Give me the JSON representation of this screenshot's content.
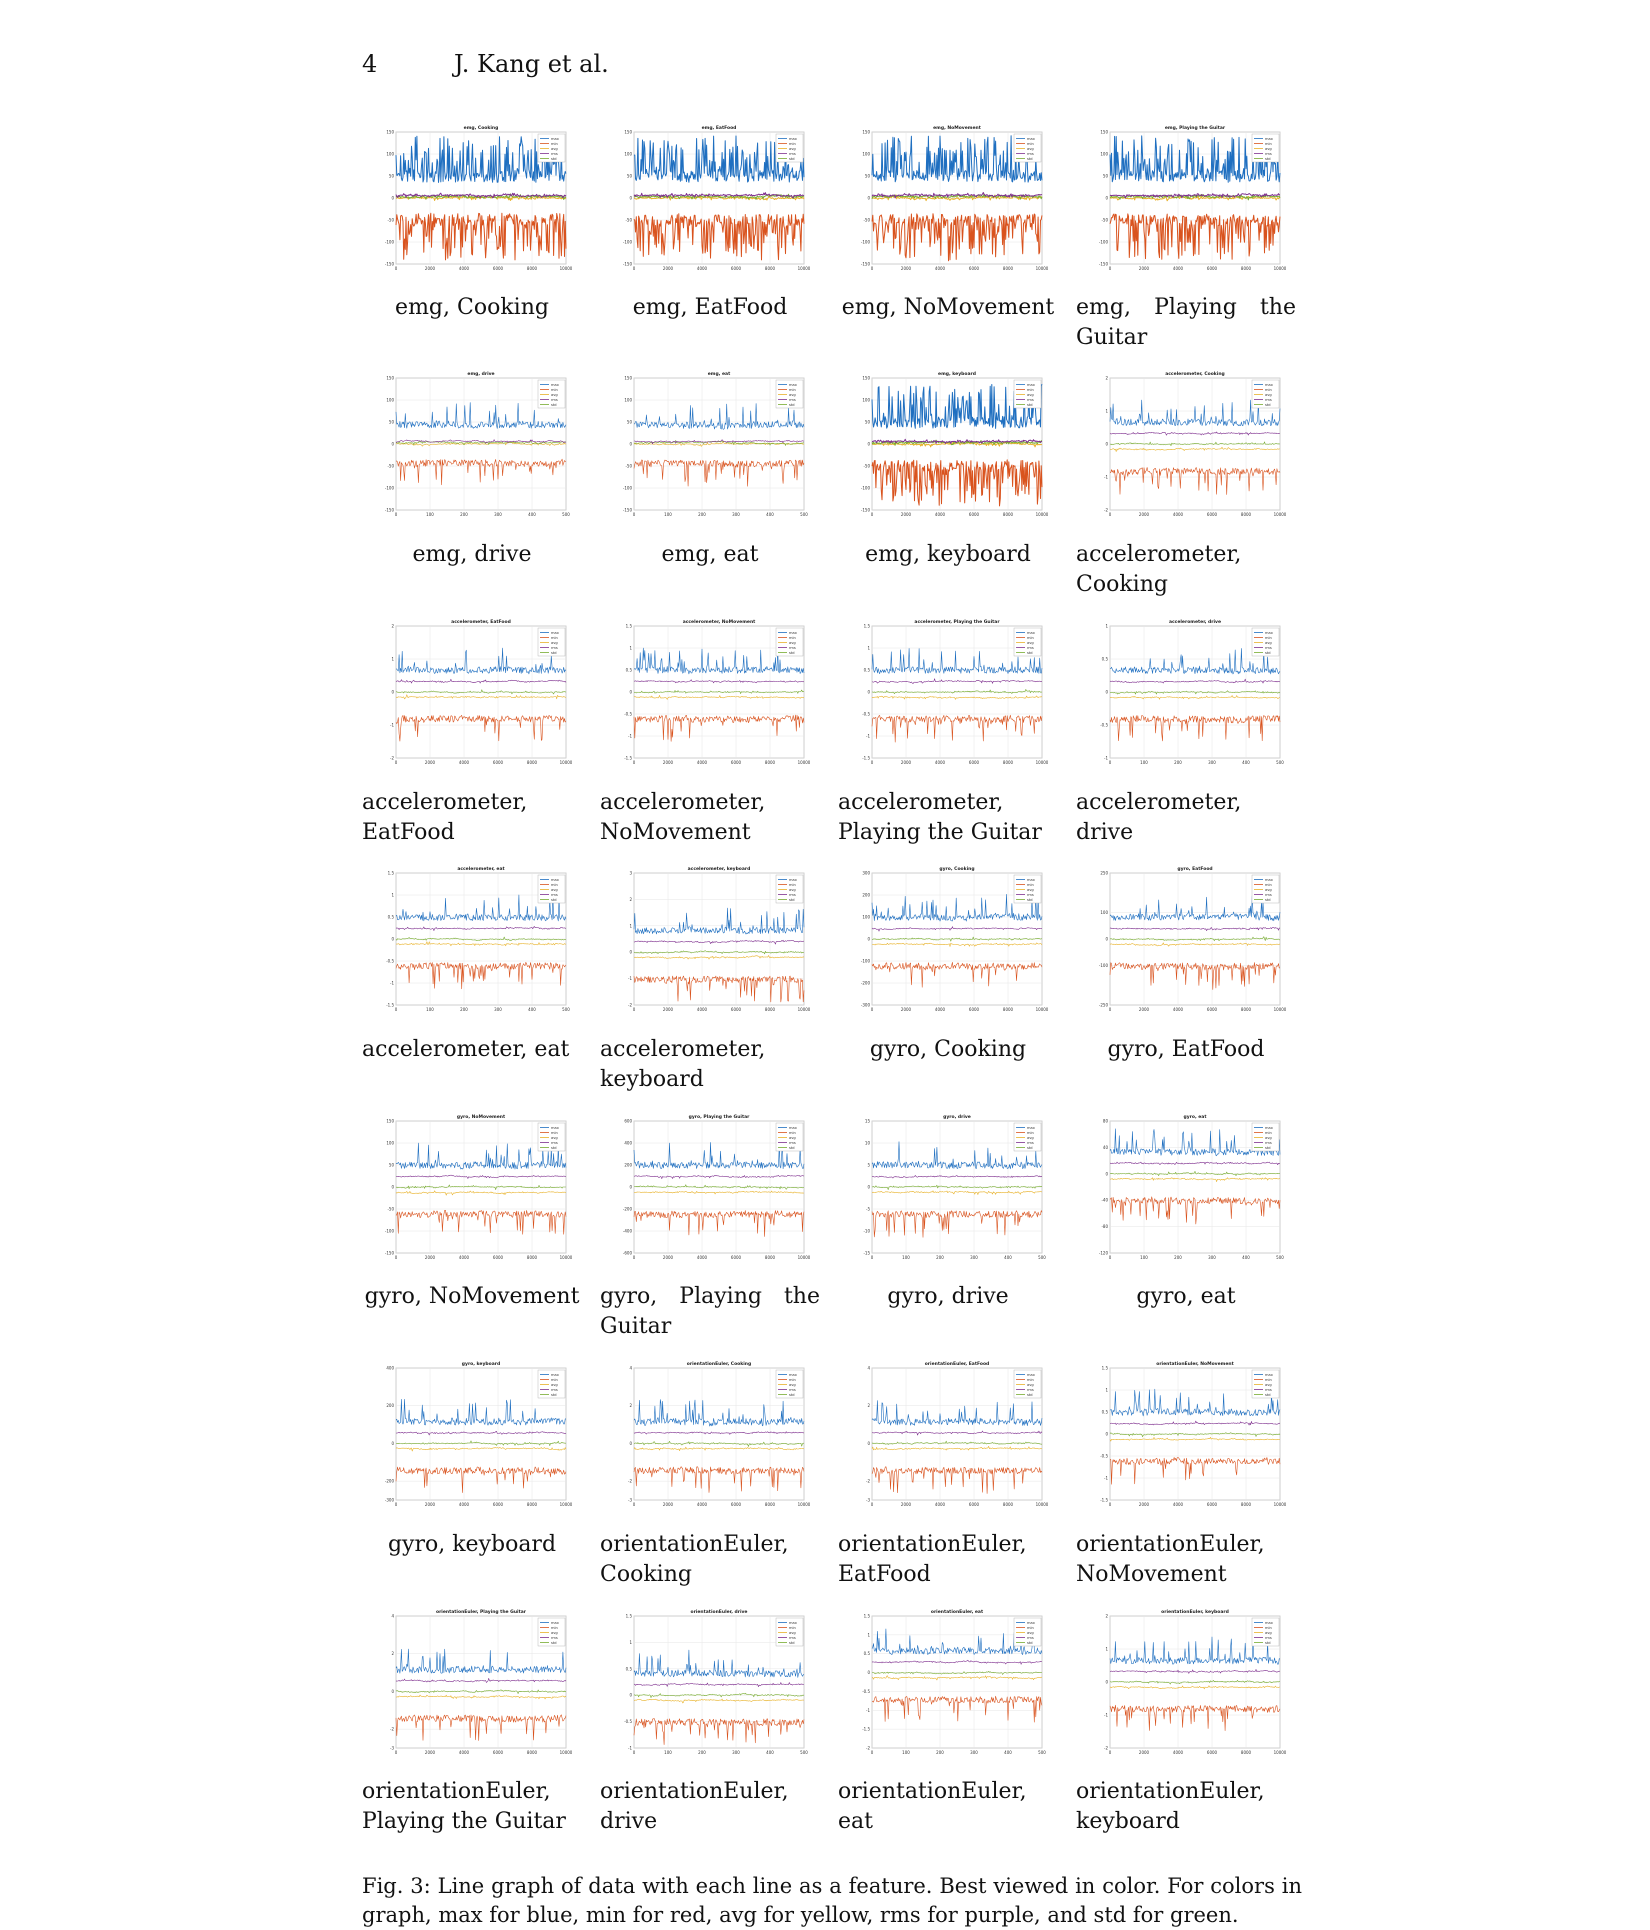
{
  "header": {
    "page_number": "4",
    "author": "J. Kang et al."
  },
  "legend_entries": [
    "max",
    "min",
    "avg",
    "rms",
    "std"
  ],
  "series_colors": {
    "max": "#1f6fc0",
    "min": "#d9531e",
    "avg": "#e8b22a",
    "rms": "#7e2f8e",
    "std": "#77ac30"
  },
  "figure_caption": "Fig. 3: Line graph of data with each line as a feature. Best viewed in color. For colors in graph, max for blue, min for red, avg for yellow, rms for purple, and std for green.",
  "chart_data": [
    {
      "type": "line",
      "title": "emg, Cooking",
      "caption": "emg, Cooking",
      "ylim": [
        -150,
        150
      ],
      "yticks": [
        "150",
        "100",
        "50",
        "0",
        "-50",
        "-100",
        "-150"
      ],
      "xticks": [
        "0",
        "2000",
        "4000",
        "6000",
        "8000",
        "10000"
      ],
      "legend": "top-right",
      "grid": true
    },
    {
      "type": "line",
      "title": "emg, EatFood",
      "caption": "emg, EatFood",
      "ylim": [
        -150,
        150
      ],
      "yticks": [
        "150",
        "100",
        "50",
        "0",
        "-50",
        "-100",
        "-150"
      ],
      "xticks": [
        "0",
        "2000",
        "4000",
        "6000",
        "8000",
        "10000"
      ],
      "legend": "top-right",
      "grid": true
    },
    {
      "type": "line",
      "title": "emg, NoMovement",
      "caption": "emg, NoMovement",
      "ylim": [
        -150,
        150
      ],
      "yticks": [
        "150",
        "100",
        "50",
        "0",
        "-50",
        "-100",
        "-150"
      ],
      "xticks": [
        "0",
        "2000",
        "4000",
        "6000",
        "8000",
        "10000"
      ],
      "legend": "top-right",
      "grid": true
    },
    {
      "type": "line",
      "title": "emg, Playing the Guitar",
      "caption": "emg, Playing the Guitar",
      "ylim": [
        -150,
        150
      ],
      "yticks": [
        "150",
        "100",
        "50",
        "0",
        "-50",
        "-100",
        "-150"
      ],
      "xticks": [
        "0",
        "2000",
        "4000",
        "6000",
        "8000",
        "10000"
      ],
      "legend": "top-right",
      "grid": true
    },
    {
      "type": "line",
      "title": "emg, drive",
      "caption": "emg, drive",
      "ylim": [
        -150,
        150
      ],
      "yticks": [
        "150",
        "100",
        "50",
        "0",
        "-50",
        "-100",
        "-150"
      ],
      "xticks": [
        "0",
        "100",
        "200",
        "300",
        "400",
        "500"
      ],
      "legend": "top-right",
      "grid": true
    },
    {
      "type": "line",
      "title": "emg, eat",
      "caption": "emg, eat",
      "ylim": [
        -150,
        150
      ],
      "yticks": [
        "150",
        "100",
        "50",
        "0",
        "-50",
        "-100",
        "-150"
      ],
      "xticks": [
        "0",
        "100",
        "200",
        "300",
        "400",
        "500"
      ],
      "legend": "top-right",
      "grid": true
    },
    {
      "type": "line",
      "title": "emg, keyboard",
      "caption": "emg, keyboard",
      "ylim": [
        -150,
        150
      ],
      "yticks": [
        "150",
        "100",
        "50",
        "0",
        "-50",
        "-100",
        "-150"
      ],
      "xticks": [
        "0",
        "2000",
        "4000",
        "6000",
        "8000",
        "10000"
      ],
      "legend": "top-right",
      "grid": true
    },
    {
      "type": "line",
      "title": "accelerometer, Cooking",
      "caption": "accelerometer, Cooking",
      "ylim": [
        -2,
        2
      ],
      "yticks": [
        "2",
        "1",
        "0",
        "-1",
        "-2"
      ],
      "xticks": [
        "0",
        "2000",
        "4000",
        "6000",
        "8000",
        "10000"
      ],
      "legend": "top-right",
      "grid": true
    },
    {
      "type": "line",
      "title": "accelerometer, EatFood",
      "caption": "accelerometer, EatFood",
      "ylim": [
        -2,
        2
      ],
      "yticks": [
        "2",
        "1",
        "0",
        "-1",
        "-2"
      ],
      "xticks": [
        "0",
        "2000",
        "4000",
        "6000",
        "8000",
        "10000"
      ],
      "legend": "top-right",
      "grid": true
    },
    {
      "type": "line",
      "title": "accelerometer, NoMovement",
      "caption": "accelerometer, NoMovement",
      "ylim": [
        -1.5,
        1.5
      ],
      "yticks": [
        "1.5",
        "1",
        "0.5",
        "0",
        "-0.5",
        "-1",
        "-1.5"
      ],
      "xticks": [
        "0",
        "2000",
        "4000",
        "6000",
        "8000",
        "10000"
      ],
      "legend": "top-right",
      "grid": true
    },
    {
      "type": "line",
      "title": "accelerometer, Playing the Guitar",
      "caption": "accelerometer, Playing the Guitar",
      "ylim": [
        -1.5,
        1.5
      ],
      "yticks": [
        "1.5",
        "1",
        "0.5",
        "0",
        "-0.5",
        "-1",
        "-1.5"
      ],
      "xticks": [
        "0",
        "2000",
        "4000",
        "6000",
        "8000",
        "10000"
      ],
      "legend": "top-right",
      "grid": true
    },
    {
      "type": "line",
      "title": "accelerometer, drive",
      "caption": "accelerometer, drive",
      "ylim": [
        -1,
        1
      ],
      "yticks": [
        "1",
        "0.5",
        "0",
        "-0.5",
        "-1"
      ],
      "xticks": [
        "0",
        "100",
        "200",
        "300",
        "400",
        "500"
      ],
      "legend": "top-right",
      "grid": true
    },
    {
      "type": "line",
      "title": "accelerometer, eat",
      "caption": "accelerometer, eat",
      "ylim": [
        -1.5,
        1.5
      ],
      "yticks": [
        "1.5",
        "1",
        "0.5",
        "0",
        "-0.5",
        "-1",
        "-1.5"
      ],
      "xticks": [
        "0",
        "100",
        "200",
        "300",
        "400",
        "500"
      ],
      "legend": "top-right",
      "grid": true
    },
    {
      "type": "line",
      "title": "accelerometer, keyboard",
      "caption": "accelerometer, keyboard",
      "ylim": [
        -2,
        3
      ],
      "yticks": [
        "3",
        "2",
        "1",
        "0",
        "-1",
        "-2"
      ],
      "xticks": [
        "0",
        "2000",
        "4000",
        "6000",
        "8000",
        "10000"
      ],
      "legend": "top-right",
      "grid": true
    },
    {
      "type": "line",
      "title": "gyro, Cooking",
      "caption": "gyro, Cooking",
      "ylim": [
        -300,
        300
      ],
      "yticks": [
        "300",
        "200",
        "100",
        "0",
        "-100",
        "-200",
        "-300"
      ],
      "xticks": [
        "0",
        "2000",
        "4000",
        "6000",
        "8000",
        "10000"
      ],
      "legend": "top-right",
      "grid": true
    },
    {
      "type": "line",
      "title": "gyro, EatFood",
      "caption": "gyro, EatFood",
      "ylim": [
        -250,
        250
      ],
      "yticks": [
        "250",
        "100",
        "0",
        "-100",
        "-250"
      ],
      "xticks": [
        "0",
        "2000",
        "4000",
        "6000",
        "8000",
        "10000"
      ],
      "legend": "top-right",
      "grid": true
    },
    {
      "type": "line",
      "title": "gyro, NoMovement",
      "caption": "gyro, NoMovement",
      "ylim": [
        -150,
        150
      ],
      "yticks": [
        "150",
        "100",
        "50",
        "0",
        "-50",
        "-100",
        "-150"
      ],
      "xticks": [
        "0",
        "2000",
        "4000",
        "6000",
        "8000",
        "10000"
      ],
      "legend": "top-right",
      "grid": true
    },
    {
      "type": "line",
      "title": "gyro, Playing the Guitar",
      "caption": "gyro, Playing the Guitar",
      "ylim": [
        -600,
        600
      ],
      "yticks": [
        "600",
        "400",
        "200",
        "0",
        "-200",
        "-400",
        "-600"
      ],
      "xticks": [
        "0",
        "2000",
        "4000",
        "6000",
        "8000",
        "10000"
      ],
      "legend": "top-right",
      "grid": true
    },
    {
      "type": "line",
      "title": "gyro, drive",
      "caption": "gyro, drive",
      "ylim": [
        -15,
        15
      ],
      "yticks": [
        "15",
        "10",
        "5",
        "0",
        "-5",
        "-10",
        "-15"
      ],
      "xticks": [
        "0",
        "100",
        "200",
        "300",
        "400",
        "500"
      ],
      "legend": "top-right",
      "grid": true
    },
    {
      "type": "line",
      "title": "gyro, eat",
      "caption": "gyro, eat",
      "ylim": [
        -120,
        80
      ],
      "yticks": [
        "80",
        "40",
        "0",
        "-40",
        "-80",
        "-120"
      ],
      "xticks": [
        "0",
        "100",
        "200",
        "300",
        "400",
        "500"
      ],
      "legend": "top-right",
      "grid": true
    },
    {
      "type": "line",
      "title": "gyro, keyboard",
      "caption": "gyro, keyboard",
      "ylim": [
        -300,
        400
      ],
      "yticks": [
        "400",
        "200",
        "0",
        "-200",
        "-300"
      ],
      "xticks": [
        "0",
        "2000",
        "4000",
        "6000",
        "8000",
        "10000"
      ],
      "legend": "top-right",
      "grid": true
    },
    {
      "type": "line",
      "title": "orientationEuler, Cooking",
      "caption": "orientationEuler, Cooking",
      "ylim": [
        -3,
        4
      ],
      "yticks": [
        "4",
        "2",
        "0",
        "-2",
        "-3"
      ],
      "xticks": [
        "0",
        "2000",
        "4000",
        "6000",
        "8000",
        "10000"
      ],
      "legend": "top-right",
      "grid": true
    },
    {
      "type": "line",
      "title": "orientationEuler, EatFood",
      "caption": "orientationEuler, EatFood",
      "ylim": [
        -3,
        4
      ],
      "yticks": [
        "4",
        "2",
        "0",
        "-2",
        "-3"
      ],
      "xticks": [
        "0",
        "2000",
        "4000",
        "6000",
        "8000",
        "10000"
      ],
      "legend": "top-right",
      "grid": true
    },
    {
      "type": "line",
      "title": "orientationEuler, NoMovement",
      "caption": "orientationEuler, NoMovement",
      "ylim": [
        -1.5,
        1.5
      ],
      "yticks": [
        "1.5",
        "1",
        "0.5",
        "0",
        "-0.5",
        "-1",
        "-1.5"
      ],
      "xticks": [
        "0",
        "2000",
        "4000",
        "6000",
        "8000",
        "10000"
      ],
      "legend": "top-right",
      "grid": true
    },
    {
      "type": "line",
      "title": "orientationEuler, Playing the Guitar",
      "caption": "orientationEuler, Playing the Guitar",
      "ylim": [
        -3,
        4
      ],
      "yticks": [
        "4",
        "2",
        "0",
        "-2",
        "-3"
      ],
      "xticks": [
        "0",
        "2000",
        "4000",
        "6000",
        "8000",
        "10000"
      ],
      "legend": "top-right",
      "grid": true
    },
    {
      "type": "line",
      "title": "orientationEuler, drive",
      "caption": "orientationEuler, drive",
      "ylim": [
        -1,
        1.5
      ],
      "yticks": [
        "1.5",
        "1",
        "0.5",
        "0",
        "-0.5",
        "-1"
      ],
      "xticks": [
        "0",
        "100",
        "200",
        "300",
        "400",
        "500"
      ],
      "legend": "top-right",
      "grid": true
    },
    {
      "type": "line",
      "title": "orientationEuler, eat",
      "caption": "orientationEuler, eat",
      "ylim": [
        -2,
        1.5
      ],
      "yticks": [
        "1.5",
        "1",
        "0.5",
        "0",
        "-0.5",
        "-1",
        "-1.5",
        "-2"
      ],
      "xticks": [
        "0",
        "100",
        "200",
        "300",
        "400",
        "500"
      ],
      "legend": "top-right",
      "grid": true
    },
    {
      "type": "line",
      "title": "orientationEuler, keyboard",
      "caption": "orientationEuler, keyboard",
      "ylim": [
        -2,
        2
      ],
      "yticks": [
        "2",
        "1",
        "0",
        "-1",
        "-2"
      ],
      "xticks": [
        "0",
        "2000",
        "4000",
        "6000",
        "8000",
        "10000"
      ],
      "legend": "top-right",
      "grid": true
    }
  ]
}
